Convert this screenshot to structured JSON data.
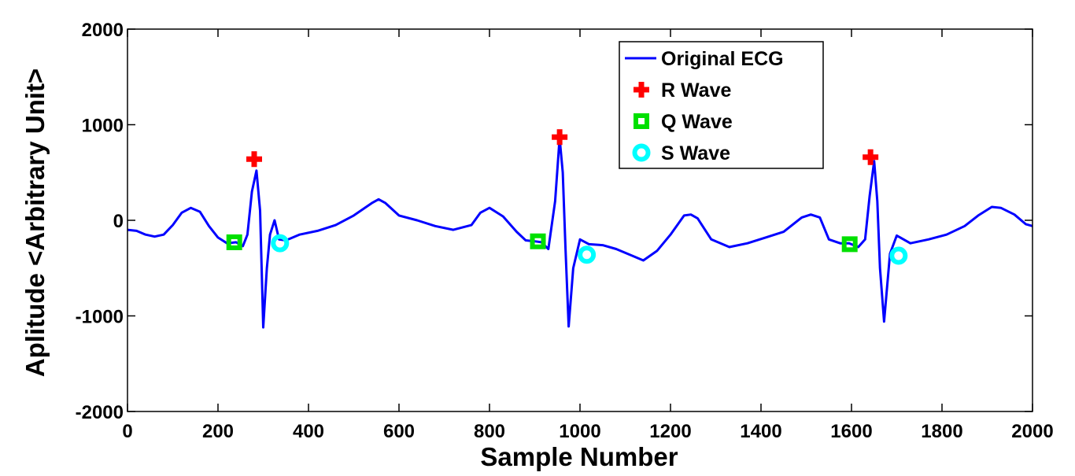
{
  "chart_data": {
    "type": "line",
    "title": "",
    "xlabel": "Sample Number",
    "ylabel": "Aplitude <Arbitrary Unit>",
    "xlim": [
      0,
      2000
    ],
    "ylim": [
      -2000,
      2000
    ],
    "xticks": [
      "0",
      "200",
      "400",
      "600",
      "800",
      "1000",
      "1200",
      "1400",
      "1600",
      "1800",
      "2000"
    ],
    "yticks": [
      "2000",
      "1000",
      "0",
      "-1000",
      "-2000"
    ],
    "grid": false,
    "legend_position": "top-right",
    "colors": {
      "ecg": "#0000ff",
      "r_wave": "#ff0000",
      "q_wave": "#00e000",
      "s_wave": "#00ffff",
      "axis": "#000000"
    },
    "series": [
      {
        "name": "Original ECG",
        "marker": "line",
        "x": [
          0,
          20,
          40,
          60,
          80,
          100,
          120,
          140,
          160,
          180,
          200,
          220,
          240,
          255,
          265,
          275,
          285,
          293,
          300,
          308,
          315,
          325,
          335,
          350,
          380,
          420,
          460,
          500,
          540,
          555,
          570,
          600,
          640,
          680,
          720,
          760,
          780,
          800,
          830,
          860,
          880,
          900,
          915,
          930,
          945,
          955,
          962,
          968,
          975,
          985,
          1000,
          1020,
          1050,
          1080,
          1110,
          1140,
          1170,
          1200,
          1230,
          1245,
          1260,
          1290,
          1330,
          1370,
          1410,
          1450,
          1490,
          1510,
          1530,
          1550,
          1575,
          1595,
          1615,
          1630,
          1640,
          1650,
          1657,
          1663,
          1672,
          1685,
          1700,
          1730,
          1770,
          1810,
          1850,
          1880,
          1910,
          1930,
          1960,
          1985,
          2000
        ],
        "y": [
          -100,
          -110,
          -150,
          -170,
          -150,
          -50,
          80,
          130,
          90,
          -60,
          -180,
          -240,
          -230,
          -270,
          -150,
          300,
          520,
          100,
          -1120,
          -500,
          -150,
          0,
          -200,
          -210,
          -150,
          -110,
          -50,
          50,
          180,
          220,
          180,
          50,
          0,
          -60,
          -100,
          -50,
          80,
          130,
          40,
          -120,
          -210,
          -220,
          -230,
          -300,
          200,
          860,
          500,
          -300,
          -1110,
          -500,
          -200,
          -250,
          -260,
          -300,
          -360,
          -420,
          -320,
          -150,
          50,
          60,
          20,
          -200,
          -280,
          -240,
          -180,
          -120,
          30,
          60,
          30,
          -200,
          -240,
          -240,
          -280,
          -200,
          250,
          620,
          200,
          -500,
          -1060,
          -350,
          -160,
          -240,
          -200,
          -150,
          -60,
          50,
          140,
          130,
          60,
          -40,
          -60
        ]
      },
      {
        "name": "R Wave",
        "marker": "plus",
        "x": [
          280,
          955,
          1642
        ],
        "y": [
          640,
          870,
          660
        ]
      },
      {
        "name": "Q Wave",
        "marker": "square",
        "x": [
          236,
          907,
          1596
        ],
        "y": [
          -230,
          -220,
          -250
        ]
      },
      {
        "name": "S Wave",
        "marker": "circle",
        "x": [
          337,
          1015,
          1704
        ],
        "y": [
          -240,
          -360,
          -370
        ]
      }
    ]
  }
}
